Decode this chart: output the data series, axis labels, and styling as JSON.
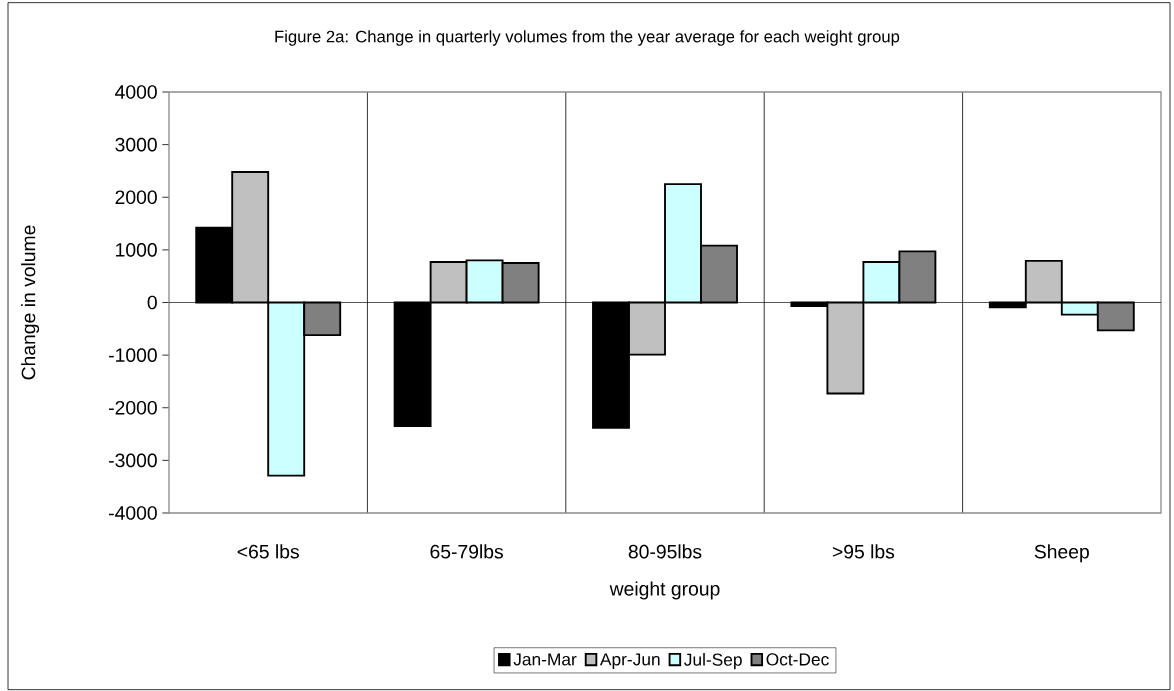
{
  "chart_data": {
    "type": "bar",
    "title": "Figure 2a: Change in quarterly volumes from the year average for each weight group",
    "xlabel": "weight group",
    "ylabel": "Change in volume",
    "categories": [
      "<65 lbs",
      "65-79lbs",
      "80-95lbs",
      ">95 lbs",
      "Sheep"
    ],
    "series": [
      {
        "name": "Jan-Mar",
        "color": "#000000",
        "values": [
          1420,
          -2350,
          -2380,
          -70,
          -90
        ]
      },
      {
        "name": "Apr-Jun",
        "color": "#c0c0c0",
        "values": [
          2480,
          770,
          -990,
          -1730,
          790
        ]
      },
      {
        "name": "Jul-Sep",
        "color": "#ccffff",
        "values": [
          -3290,
          800,
          2250,
          770,
          -230
        ]
      },
      {
        "name": "Oct-Dec",
        "color": "#808080",
        "values": [
          -620,
          750,
          1080,
          970,
          -530
        ]
      }
    ],
    "ylim": [
      -4000,
      4000
    ],
    "yticks": [
      -4000,
      -3000,
      -2000,
      -1000,
      0,
      1000,
      2000,
      3000,
      4000
    ],
    "grid": "x",
    "legend": "bottom"
  }
}
